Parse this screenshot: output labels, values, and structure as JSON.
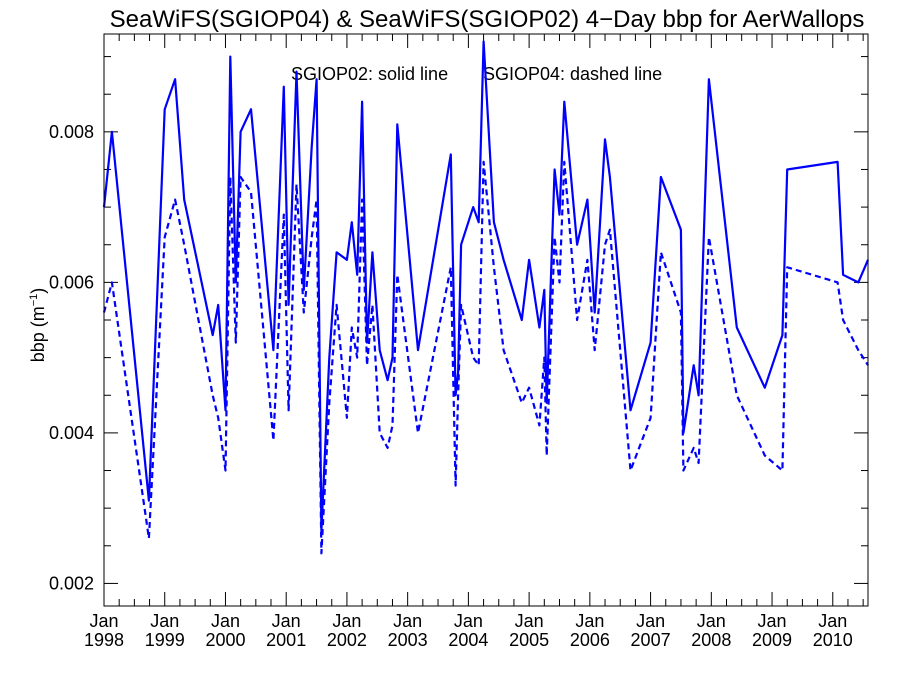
{
  "chart_data": {
    "type": "line",
    "title": "SeaWiFS(SGIOP04) & SeaWiFS(SGIOP02) 4−Day bbp for AerWallops",
    "ylabel_main": "bbp (m",
    "ylabel_sup": "−1",
    "ylabel_close": ")",
    "annotation_solid": "SGIOP02: solid line",
    "annotation_dashed": "SGIOP04: dashed line",
    "xlim": [
      1998.0,
      2010.58
    ],
    "ylim": [
      0.0017,
      0.0093
    ],
    "yticks": [
      {
        "value": 0.002,
        "label": "0.002"
      },
      {
        "value": 0.004,
        "label": "0.004"
      },
      {
        "value": 0.006,
        "label": "0.006"
      },
      {
        "value": 0.008,
        "label": "0.008"
      }
    ],
    "xticks": [
      {
        "value": 1998,
        "month": "Jan",
        "year": "1998"
      },
      {
        "value": 1999,
        "month": "Jan",
        "year": "1999"
      },
      {
        "value": 2000,
        "month": "Jan",
        "year": "2000"
      },
      {
        "value": 2001,
        "month": "Jan",
        "year": "2001"
      },
      {
        "value": 2002,
        "month": "Jan",
        "year": "2002"
      },
      {
        "value": 2003,
        "month": "Jan",
        "year": "2003"
      },
      {
        "value": 2004,
        "month": "Jan",
        "year": "2004"
      },
      {
        "value": 2005,
        "month": "Jan",
        "year": "2005"
      },
      {
        "value": 2006,
        "month": "Jan",
        "year": "2006"
      },
      {
        "value": 2007,
        "month": "Jan",
        "year": "2007"
      },
      {
        "value": 2008,
        "month": "Jan",
        "year": "2008"
      },
      {
        "value": 2009,
        "month": "Jan",
        "year": "2009"
      },
      {
        "value": 2010,
        "month": "Jan",
        "year": "2010"
      }
    ],
    "grid": false,
    "line_color": "#0000ff",
    "series": [
      {
        "style": "solid",
        "points": [
          [
            1998.0,
            0.007
          ],
          [
            1998.13,
            0.008
          ],
          [
            1998.74,
            0.0031
          ],
          [
            1999.0,
            0.0083
          ],
          [
            1999.17,
            0.0087
          ],
          [
            1999.32,
            0.0071
          ],
          [
            1999.79,
            0.0053
          ],
          [
            1999.88,
            0.0057
          ],
          [
            2000.0,
            0.0043
          ],
          [
            2000.08,
            0.009
          ],
          [
            2000.17,
            0.006
          ],
          [
            2000.25,
            0.008
          ],
          [
            2000.42,
            0.0083
          ],
          [
            2000.79,
            0.0051
          ],
          [
            2000.96,
            0.0086
          ],
          [
            2001.04,
            0.0057
          ],
          [
            2001.17,
            0.0088
          ],
          [
            2001.29,
            0.0059
          ],
          [
            2001.42,
            0.0078
          ],
          [
            2001.5,
            0.0087
          ],
          [
            2001.58,
            0.0027
          ],
          [
            2001.71,
            0.005
          ],
          [
            2001.83,
            0.0064
          ],
          [
            2002.0,
            0.0063
          ],
          [
            2002.08,
            0.0068
          ],
          [
            2002.17,
            0.0061
          ],
          [
            2002.25,
            0.0084
          ],
          [
            2002.33,
            0.0052
          ],
          [
            2002.42,
            0.0064
          ],
          [
            2002.54,
            0.0051
          ],
          [
            2002.67,
            0.0047
          ],
          [
            2002.75,
            0.005
          ],
          [
            2002.83,
            0.0081
          ],
          [
            2003.17,
            0.0051
          ],
          [
            2003.71,
            0.0077
          ],
          [
            2003.79,
            0.0045
          ],
          [
            2003.83,
            0.0048
          ],
          [
            2003.88,
            0.0065
          ],
          [
            2004.08,
            0.007
          ],
          [
            2004.17,
            0.0068
          ],
          [
            2004.25,
            0.0092
          ],
          [
            2004.42,
            0.0068
          ],
          [
            2004.58,
            0.0063
          ],
          [
            2004.88,
            0.0055
          ],
          [
            2005.0,
            0.0063
          ],
          [
            2005.17,
            0.0054
          ],
          [
            2005.25,
            0.0059
          ],
          [
            2005.29,
            0.0044
          ],
          [
            2005.42,
            0.0075
          ],
          [
            2005.5,
            0.0069
          ],
          [
            2005.58,
            0.0084
          ],
          [
            2005.79,
            0.0065
          ],
          [
            2005.96,
            0.0071
          ],
          [
            2006.08,
            0.0056
          ],
          [
            2006.25,
            0.0079
          ],
          [
            2006.33,
            0.0074
          ],
          [
            2006.67,
            0.0043
          ],
          [
            2007.0,
            0.0052
          ],
          [
            2007.17,
            0.0074
          ],
          [
            2007.5,
            0.0067
          ],
          [
            2007.54,
            0.004
          ],
          [
            2007.71,
            0.0049
          ],
          [
            2007.79,
            0.0045
          ],
          [
            2007.96,
            0.0087
          ],
          [
            2008.42,
            0.0054
          ],
          [
            2008.88,
            0.0046
          ],
          [
            2009.17,
            0.0053
          ],
          [
            2009.25,
            0.0075
          ],
          [
            2010.08,
            0.0076
          ],
          [
            2010.17,
            0.0061
          ],
          [
            2010.42,
            0.006
          ],
          [
            2010.58,
            0.0063
          ]
        ]
      },
      {
        "style": "dashed",
        "points": [
          [
            1998.0,
            0.0056
          ],
          [
            1998.13,
            0.006
          ],
          [
            1998.74,
            0.0026
          ],
          [
            1999.0,
            0.0066
          ],
          [
            1999.17,
            0.0071
          ],
          [
            1999.32,
            0.0065
          ],
          [
            1999.79,
            0.0045
          ],
          [
            1999.88,
            0.0042
          ],
          [
            2000.0,
            0.0035
          ],
          [
            2000.08,
            0.0074
          ],
          [
            2000.17,
            0.0052
          ],
          [
            2000.25,
            0.0074
          ],
          [
            2000.42,
            0.0072
          ],
          [
            2000.79,
            0.0039
          ],
          [
            2000.96,
            0.0069
          ],
          [
            2001.04,
            0.0043
          ],
          [
            2001.17,
            0.0073
          ],
          [
            2001.29,
            0.0056
          ],
          [
            2001.42,
            0.0066
          ],
          [
            2001.5,
            0.0071
          ],
          [
            2001.58,
            0.0024
          ],
          [
            2001.71,
            0.0044
          ],
          [
            2001.83,
            0.0057
          ],
          [
            2002.0,
            0.0042
          ],
          [
            2002.08,
            0.0054
          ],
          [
            2002.17,
            0.005
          ],
          [
            2002.25,
            0.0071
          ],
          [
            2002.33,
            0.0049
          ],
          [
            2002.42,
            0.0057
          ],
          [
            2002.54,
            0.004
          ],
          [
            2002.67,
            0.0038
          ],
          [
            2002.75,
            0.0041
          ],
          [
            2002.83,
            0.0061
          ],
          [
            2003.17,
            0.004
          ],
          [
            2003.71,
            0.0062
          ],
          [
            2003.79,
            0.0033
          ],
          [
            2003.83,
            0.0045
          ],
          [
            2003.88,
            0.0057
          ],
          [
            2004.08,
            0.005
          ],
          [
            2004.17,
            0.0049
          ],
          [
            2004.25,
            0.0076
          ],
          [
            2004.42,
            0.0062
          ],
          [
            2004.58,
            0.0051
          ],
          [
            2004.88,
            0.0044
          ],
          [
            2005.0,
            0.0046
          ],
          [
            2005.17,
            0.0041
          ],
          [
            2005.25,
            0.005
          ],
          [
            2005.29,
            0.0037
          ],
          [
            2005.42,
            0.0066
          ],
          [
            2005.5,
            0.006
          ],
          [
            2005.58,
            0.0076
          ],
          [
            2005.79,
            0.0055
          ],
          [
            2005.96,
            0.0063
          ],
          [
            2006.08,
            0.0051
          ],
          [
            2006.25,
            0.0065
          ],
          [
            2006.33,
            0.0067
          ],
          [
            2006.67,
            0.0035
          ],
          [
            2007.0,
            0.0042
          ],
          [
            2007.17,
            0.0064
          ],
          [
            2007.5,
            0.0056
          ],
          [
            2007.54,
            0.0035
          ],
          [
            2007.71,
            0.0038
          ],
          [
            2007.79,
            0.0036
          ],
          [
            2007.96,
            0.0066
          ],
          [
            2008.42,
            0.0045
          ],
          [
            2008.88,
            0.0037
          ],
          [
            2009.17,
            0.0035
          ],
          [
            2009.25,
            0.0062
          ],
          [
            2010.08,
            0.006
          ],
          [
            2010.17,
            0.0055
          ],
          [
            2010.42,
            0.0051
          ],
          [
            2010.58,
            0.0049
          ]
        ]
      }
    ]
  }
}
